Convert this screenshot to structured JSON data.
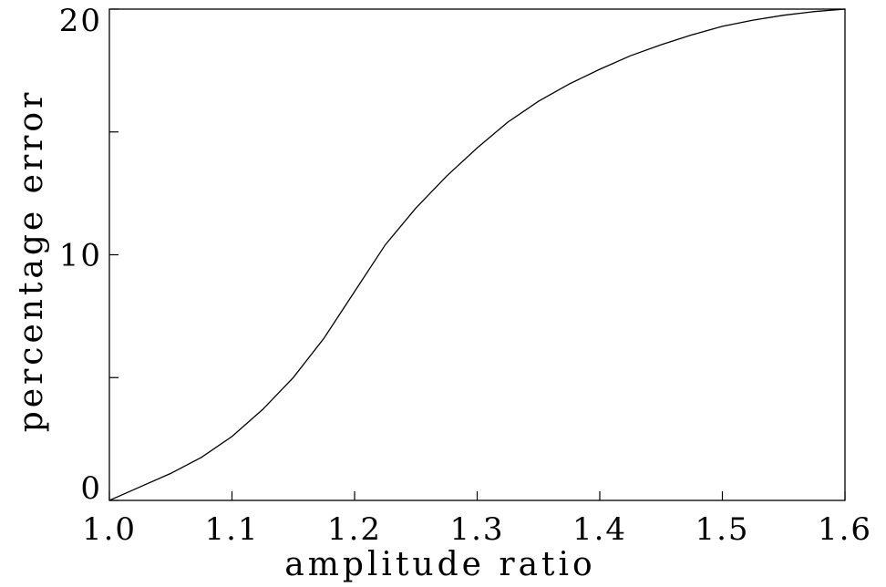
{
  "chart_data": {
    "type": "line",
    "title": "",
    "xlabel": "amplitude ratio",
    "ylabel": "percentage error",
    "xlim": [
      1.0,
      1.6
    ],
    "ylim": [
      0,
      20
    ],
    "x_ticks": [
      1.0,
      1.1,
      1.2,
      1.3,
      1.4,
      1.5,
      1.6
    ],
    "x_tick_labels": [
      "1.0",
      "1.1",
      "1.2",
      "1.3",
      "1.4",
      "1.5",
      "1.6"
    ],
    "y_ticks": [
      0,
      5,
      10,
      15,
      20
    ],
    "y_tick_labels": [
      "0",
      "",
      "10",
      "",
      "20"
    ],
    "grid": false,
    "legend": "none",
    "line_color": "#000000",
    "series": [
      {
        "x": [
          1.0,
          1.025,
          1.05,
          1.075,
          1.1,
          1.125,
          1.15,
          1.175,
          1.2,
          1.225,
          1.25,
          1.275,
          1.3,
          1.325,
          1.35,
          1.375,
          1.4,
          1.425,
          1.45,
          1.475,
          1.5,
          1.525,
          1.55,
          1.575,
          1.6
        ],
        "y": [
          0,
          0.55,
          1.1,
          1.75,
          2.6,
          3.7,
          5.0,
          6.6,
          8.5,
          10.4,
          11.9,
          13.2,
          14.35,
          15.4,
          16.25,
          16.95,
          17.55,
          18.1,
          18.55,
          18.95,
          19.3,
          19.55,
          19.75,
          19.9,
          20.0
        ]
      }
    ]
  }
}
